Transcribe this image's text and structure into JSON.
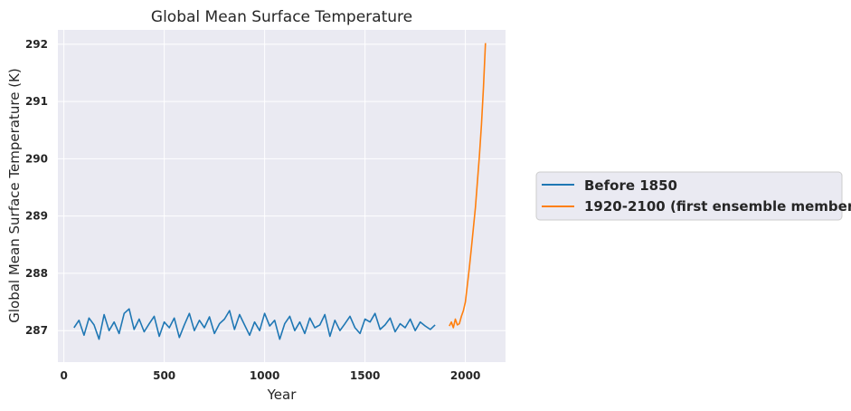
{
  "chart_data": {
    "type": "line",
    "title": "Global Mean Surface Temperature",
    "xlabel": "Year",
    "ylabel": "Global Mean Surface Temperature (K)",
    "xlim": [
      -30,
      2200
    ],
    "ylim": [
      286.45,
      292.25
    ],
    "xticks": [
      0,
      500,
      1000,
      1500,
      2000
    ],
    "yticks": [
      287,
      288,
      289,
      290,
      291,
      292
    ],
    "grid": true,
    "legend_position": "outside-right",
    "series": [
      {
        "name": "Before 1850",
        "color": "#1f77b4",
        "x_start": 50,
        "x_end": 1849,
        "summary": {
          "mean": 287.08,
          "min": 286.7,
          "max": 287.42
        },
        "x": [
          50,
          75,
          100,
          125,
          150,
          175,
          200,
          225,
          250,
          275,
          300,
          325,
          350,
          375,
          400,
          425,
          450,
          475,
          500,
          525,
          550,
          575,
          600,
          625,
          650,
          675,
          700,
          725,
          750,
          775,
          800,
          825,
          850,
          875,
          900,
          925,
          950,
          975,
          1000,
          1025,
          1050,
          1075,
          1100,
          1125,
          1150,
          1175,
          1200,
          1225,
          1250,
          1275,
          1300,
          1325,
          1350,
          1375,
          1400,
          1425,
          1450,
          1475,
          1500,
          1525,
          1550,
          1575,
          1600,
          1625,
          1650,
          1675,
          1700,
          1725,
          1750,
          1775,
          1800,
          1825,
          1849
        ],
        "y": [
          287.05,
          287.18,
          286.92,
          287.22,
          287.1,
          286.85,
          287.28,
          287.0,
          287.15,
          286.95,
          287.3,
          287.38,
          287.02,
          287.2,
          286.98,
          287.12,
          287.25,
          286.9,
          287.15,
          287.05,
          287.22,
          286.88,
          287.1,
          287.3,
          287.0,
          287.18,
          287.05,
          287.24,
          286.95,
          287.12,
          287.2,
          287.35,
          287.02,
          287.28,
          287.1,
          286.92,
          287.15,
          287.0,
          287.3,
          287.08,
          287.18,
          286.85,
          287.12,
          287.25,
          287.0,
          287.15,
          286.95,
          287.22,
          287.05,
          287.1,
          287.28,
          286.9,
          287.18,
          287.0,
          287.12,
          287.25,
          287.05,
          286.95,
          287.2,
          287.15,
          287.3,
          287.02,
          287.1,
          287.22,
          286.98,
          287.12,
          287.05,
          287.2,
          287.0,
          287.15,
          287.08,
          287.02,
          287.1
        ]
      },
      {
        "name": "1920-2100 (first ensemble member)",
        "color": "#ff7f0e",
        "x_start": 1920,
        "x_end": 2100,
        "x": [
          1920,
          1930,
          1940,
          1950,
          1960,
          1970,
          1980,
          1990,
          2000,
          2010,
          2020,
          2030,
          2040,
          2050,
          2060,
          2070,
          2080,
          2090,
          2100
        ],
        "y": [
          287.08,
          287.15,
          287.05,
          287.2,
          287.1,
          287.12,
          287.25,
          287.35,
          287.5,
          287.8,
          288.1,
          288.45,
          288.8,
          289.15,
          289.6,
          290.05,
          290.6,
          291.25,
          292.02
        ]
      }
    ]
  }
}
